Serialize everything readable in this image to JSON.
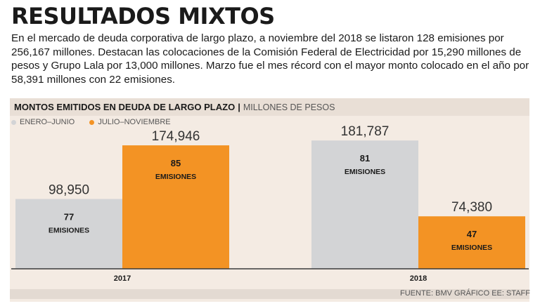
{
  "title": "RESULTADOS MIXTOS",
  "intro": "En el mercado de deuda corporativa de largo plazo, a noviembre del 2018 se listaron 128 emisiones por 256,167 millones. Destacan las colocaciones de la Comisión Federal de Electricidad por 15,290 millones de pesos y Grupo Lala por 13,000 millones. Marzo fue el mes récord con el mayor monto colocado en el año por 58,391 millones con 22 emisiones.",
  "chart_header": {
    "title": "MONTOS EMITIDOS EN DEUDA DE LARGO PLAZO",
    "separator": "|",
    "unit": "MILLONES DE PESOS"
  },
  "legend": [
    {
      "label": "ENERO–JUNIO",
      "color": "#d3d4d6"
    },
    {
      "label": "JULIO–NOVIEMBRE",
      "color": "#f39324"
    }
  ],
  "source": "FUENTE: BMV GRÁFICO EE: STAFF",
  "chart_data": {
    "type": "bar",
    "title": "MONTOS EMITIDOS EN DEUDA DE LARGO PLAZO",
    "ylabel": "MILLONES DE PESOS",
    "xlabel": "",
    "categories": [
      "2017",
      "2018"
    ],
    "ylim": [
      0,
      200000
    ],
    "grid": false,
    "legend_position": "top-left",
    "series": [
      {
        "name": "ENERO–JUNIO",
        "color": "#d3d4d6",
        "values": [
          98950,
          181787
        ],
        "value_labels": [
          "98,950",
          "181,787"
        ],
        "emisiones": [
          "77",
          "81"
        ]
      },
      {
        "name": "JULIO–NOVIEMBRE",
        "color": "#f39324",
        "values": [
          174946,
          74380
        ],
        "value_labels": [
          "174,946",
          "74,380"
        ],
        "emisiones": [
          "85",
          "47"
        ]
      }
    ],
    "emisiones_label": "EMISIONES"
  }
}
